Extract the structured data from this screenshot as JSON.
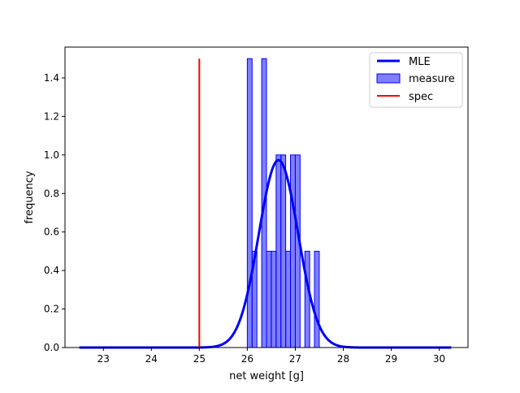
{
  "chart_data": {
    "type": "bar",
    "xlabel": "net weight [g]",
    "ylabel": "frequency",
    "xlim": [
      22.2,
      30.6
    ],
    "ylim": [
      0,
      1.56
    ],
    "xticks": [
      23,
      24,
      25,
      26,
      27,
      28,
      29,
      30
    ],
    "yticks": [
      0.0,
      0.2,
      0.4,
      0.6,
      0.8,
      1.0,
      1.2,
      1.4
    ],
    "ytick_labels": [
      "0.0",
      "0.2",
      "0.4",
      "0.6",
      "0.8",
      "1.0",
      "1.2",
      "1.4"
    ],
    "grid": false,
    "legend_position": "top-right",
    "legend": [
      {
        "label": "MLE",
        "kind": "line",
        "color": "#0000ff"
      },
      {
        "label": "measure",
        "kind": "patch",
        "color": "#0000ff"
      },
      {
        "label": "spec",
        "kind": "line",
        "color": "#ff0000"
      }
    ],
    "histogram": {
      "name": "measure",
      "color": "#0000ff",
      "bin_width": 0.1,
      "bins": [
        {
          "x0": 26.0,
          "x1": 26.1,
          "value": 1.5
        },
        {
          "x0": 26.1,
          "x1": 26.2,
          "value": 0.5
        },
        {
          "x0": 26.3,
          "x1": 26.4,
          "value": 1.5
        },
        {
          "x0": 26.4,
          "x1": 26.5,
          "value": 0.5
        },
        {
          "x0": 26.5,
          "x1": 26.6,
          "value": 0.5
        },
        {
          "x0": 26.6,
          "x1": 26.7,
          "value": 1.0
        },
        {
          "x0": 26.7,
          "x1": 26.8,
          "value": 1.0
        },
        {
          "x0": 26.8,
          "x1": 26.9,
          "value": 0.5
        },
        {
          "x0": 26.9,
          "x1": 27.0,
          "value": 1.0
        },
        {
          "x0": 27.0,
          "x1": 27.1,
          "value": 1.0
        },
        {
          "x0": 27.2,
          "x1": 27.3,
          "value": 0.5
        },
        {
          "x0": 27.4,
          "x1": 27.5,
          "value": 0.5
        }
      ]
    },
    "mle_curve": {
      "name": "MLE",
      "color": "#0000ff",
      "distribution": "normal",
      "mean": 26.65,
      "std": 0.41,
      "x_range": [
        22.5,
        30.25
      ]
    },
    "spec_line": {
      "name": "spec",
      "color": "#ff0000",
      "x": 25.0,
      "y_range": [
        0,
        1.5
      ]
    }
  }
}
